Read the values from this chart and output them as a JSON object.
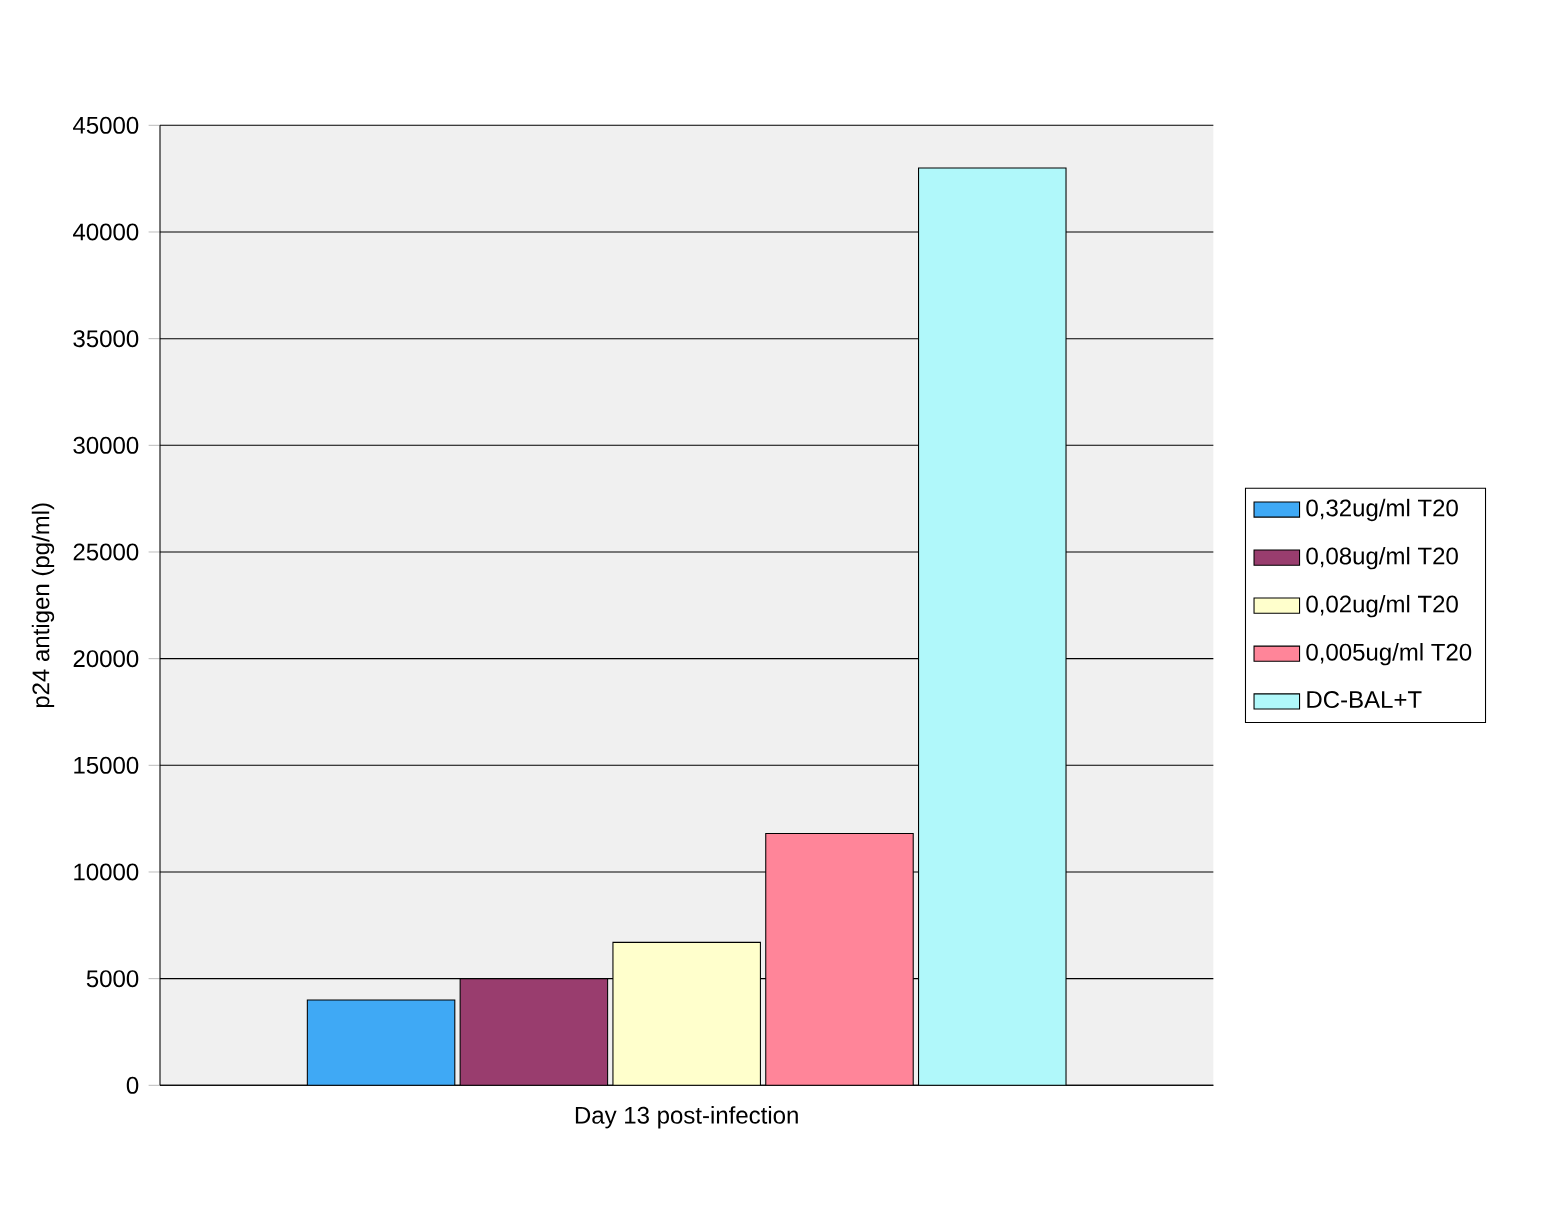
{
  "chart_data": {
    "type": "bar",
    "categories": [
      "Day 13 post-infection"
    ],
    "ylabel": "p24 antigen (pg/ml)",
    "ylim": [
      0,
      45000
    ],
    "yticks": [
      0,
      5000,
      10000,
      15000,
      20000,
      25000,
      30000,
      35000,
      40000,
      45000
    ],
    "grid": "y",
    "legend": "right",
    "series": [
      {
        "name": "0,32ug/ml T20",
        "color": "#3fa9f5",
        "values": [
          4000
        ]
      },
      {
        "name": "0,08ug/ml T20",
        "color": "#993d6e",
        "values": [
          5000
        ]
      },
      {
        "name": "0,02ug/ml T20",
        "color": "#ffffcc",
        "values": [
          6700
        ]
      },
      {
        "name": "0,005ug/ml T20",
        "color": "#ff8599",
        "values": [
          11800
        ]
      },
      {
        "name": "DC-BAL+T",
        "color": "#b0f8fa",
        "values": [
          43000
        ]
      }
    ]
  }
}
